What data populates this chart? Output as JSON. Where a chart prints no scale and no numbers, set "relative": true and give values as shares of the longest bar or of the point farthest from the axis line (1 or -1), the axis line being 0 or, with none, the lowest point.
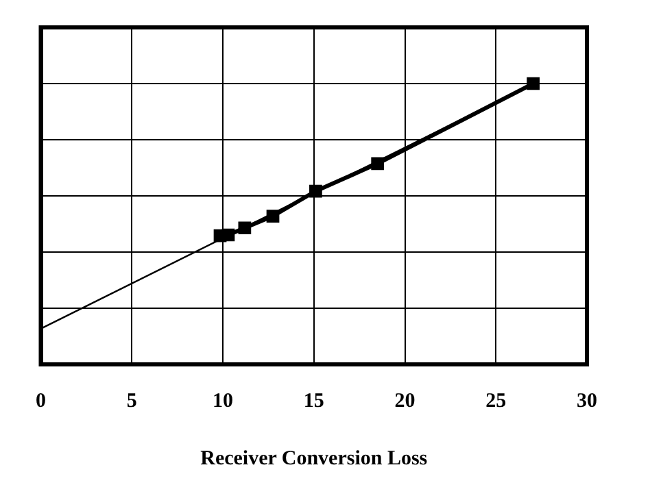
{
  "chart_data": {
    "type": "line",
    "xlabel": "Receiver Conversion Loss",
    "relative": true,
    "xlim": [
      0,
      30
    ],
    "xticks": [
      0,
      5,
      10,
      15,
      20,
      25,
      30
    ],
    "grid": true,
    "series": [
      {
        "color": "#000000",
        "marker": "none",
        "x": [
          0,
          26.6
        ],
        "values": [
          0.127,
          0.985
        ]
      },
      {
        "color": "#000000",
        "marker": "square",
        "x": [
          9.85,
          10.3,
          11.2,
          12.75,
          15.1,
          18.5,
          27.05
        ],
        "values": [
          0.458,
          0.461,
          0.486,
          0.528,
          0.617,
          0.715,
          1.0
        ]
      }
    ]
  }
}
